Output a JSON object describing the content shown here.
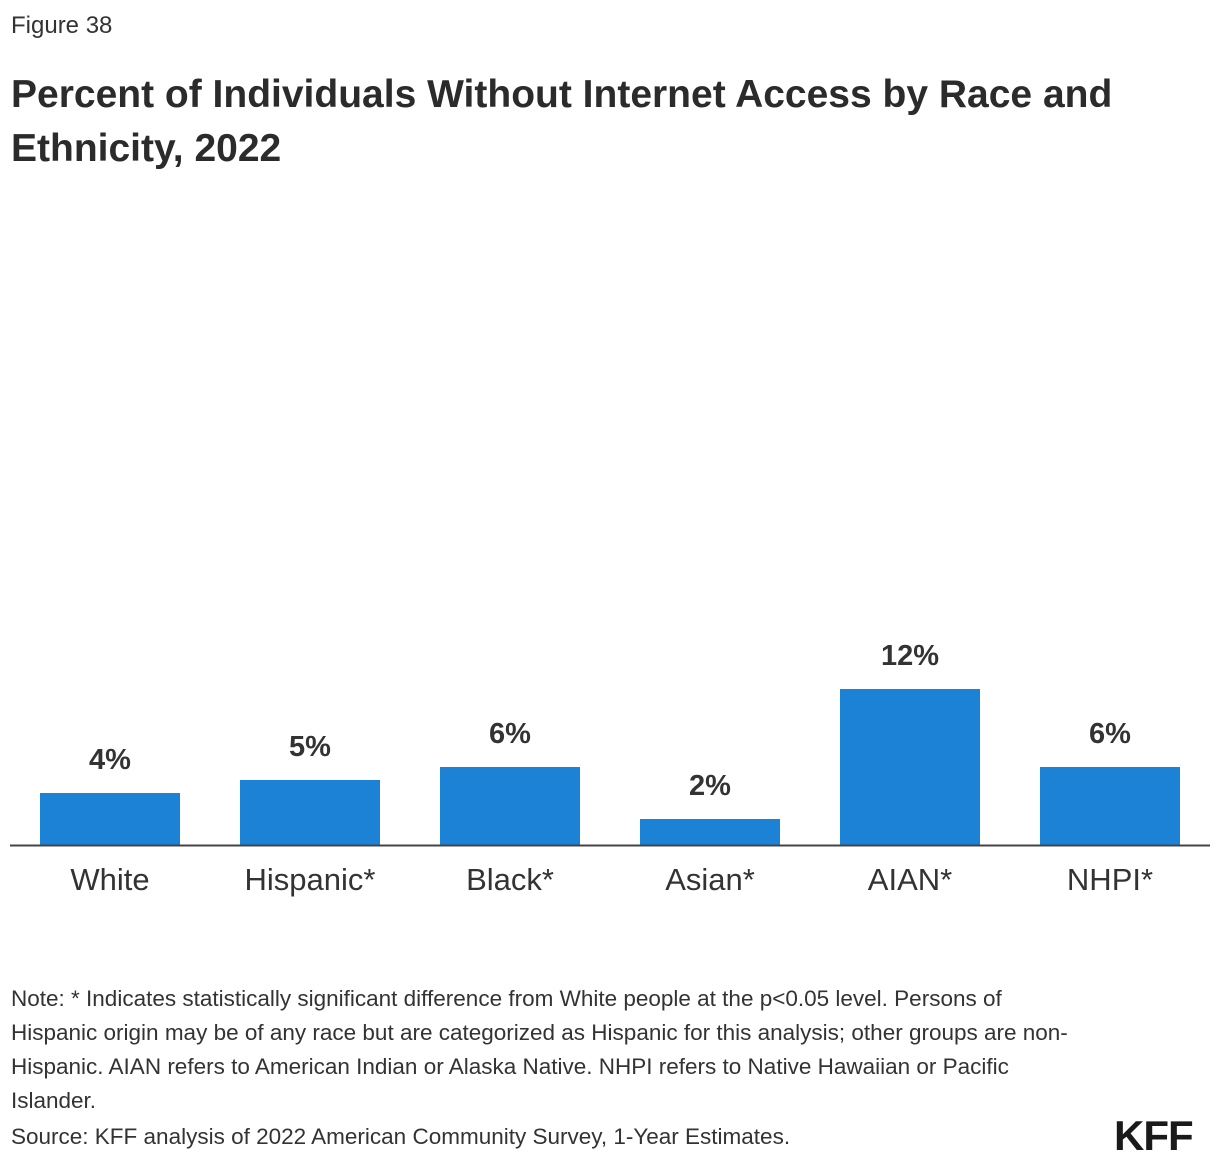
{
  "figure_label": "Figure 38",
  "chart_data": {
    "type": "bar",
    "title": "Percent of Individuals Without Internet Access by Race and Ethnicity, 2022",
    "categories": [
      "White",
      "Hispanic*",
      "Black*",
      "Asian*",
      "AIAN*",
      "NHPI*"
    ],
    "values": [
      4,
      5,
      6,
      2,
      12,
      6
    ],
    "data_labels": [
      "4%",
      "5%",
      "6%",
      "2%",
      "12%",
      "6%"
    ],
    "xlabel": "",
    "ylabel": "",
    "grid": false,
    "bar_color": "#1c82d6"
  },
  "note": "Note: * Indicates statistically significant difference from White people at the p<0.05 level. Persons of Hispanic origin may be of any race but are categorized as Hispanic for this analysis; other groups are non-Hispanic. AIAN refers to American Indian or Alaska Native. NHPI refers to Native Hawaiian or Pacific Islander.",
  "source": "Source: KFF analysis of 2022 American Community Survey, 1-Year Estimates.",
  "logo": "KFF"
}
